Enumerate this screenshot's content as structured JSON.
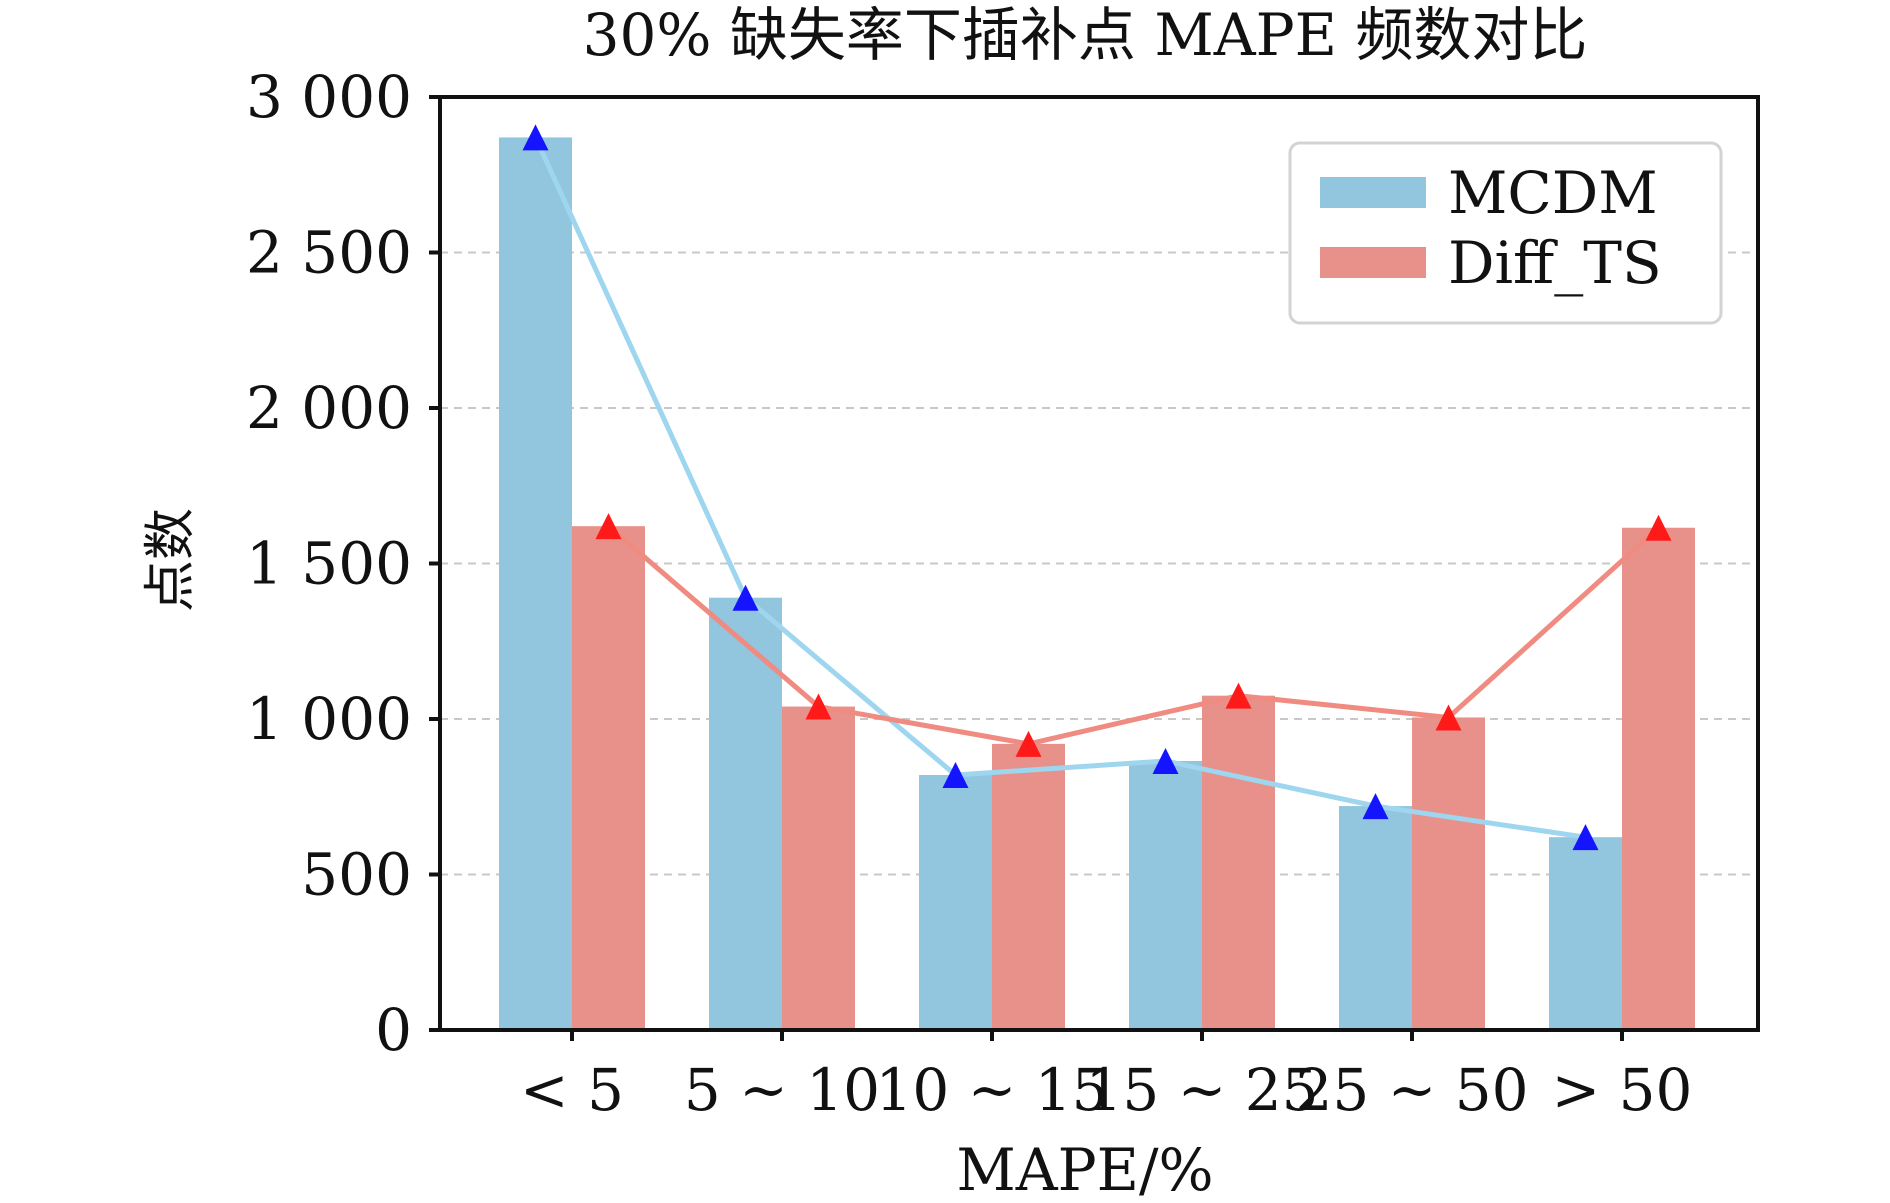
{
  "chart_data": {
    "type": "bar",
    "title": "30% 缺失率下插补点 MAPE 频数对比",
    "xlabel": "MAPE/%",
    "ylabel": "点数",
    "categories": [
      "< 5",
      "5 ~ 10",
      "10 ~ 15",
      "15 ~ 25",
      "25 ~ 50",
      "> 50"
    ],
    "series": [
      {
        "name": "MCDM",
        "values": [
          2870,
          1390,
          820,
          865,
          720,
          620
        ],
        "bar_color": "#92c5de",
        "line_color": "#9ed5ef",
        "marker_color": "#1414ff"
      },
      {
        "name": "Diff_TS",
        "values": [
          1620,
          1040,
          920,
          1075,
          1005,
          1615
        ],
        "bar_color": "#e8908a",
        "line_color": "#f08b82",
        "marker_color": "#ff1a1a"
      }
    ],
    "ylim": [
      0,
      3000
    ],
    "yticks": [
      0,
      500,
      1000,
      1500,
      2000,
      2500,
      3000
    ],
    "ytick_labels": [
      "0",
      "500",
      "1 000",
      "1 500",
      "2 000",
      "2 500",
      "3 000"
    ],
    "grid": true,
    "legend_position": "top-right"
  }
}
